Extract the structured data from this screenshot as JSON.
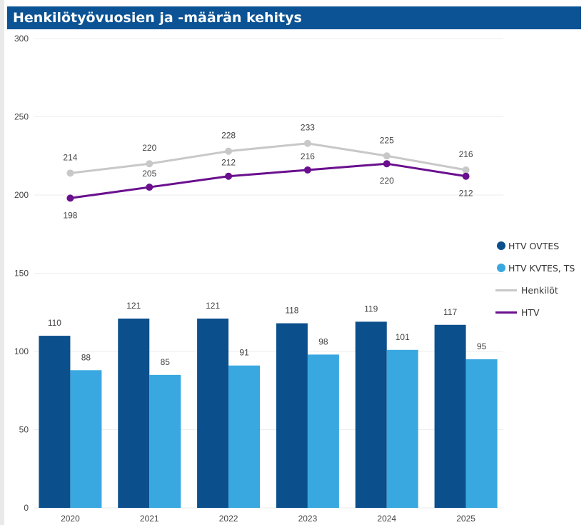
{
  "title": "Henkilötyövuosien ja -määrän kehitys",
  "colors": {
    "title_bg": "#0b5394",
    "htv_ovtes": "#0b4f8c",
    "htv_kvtes": "#3aa8e0",
    "henkilot": "#c8c8c8",
    "htv": "#6a0f8e"
  },
  "legend": [
    {
      "label": "HTV OVTES",
      "marker": "dot",
      "color": "#0b4f8c"
    },
    {
      "label": "HTV KVTES, TS",
      "marker": "dot",
      "color": "#3aa8e0"
    },
    {
      "label": "Henkilöt",
      "marker": "line",
      "color": "#c8c8c8"
    },
    {
      "label": "HTV",
      "marker": "line",
      "color": "#6a0f8e"
    }
  ],
  "chart_data": {
    "type": "bar",
    "title": "Henkilötyövuosien ja -määrän kehitys",
    "categories": [
      "2020",
      "2021",
      "2022",
      "2023",
      "2024",
      "2025"
    ],
    "ylim": [
      0,
      300
    ],
    "yticks": [
      0,
      50,
      100,
      150,
      200,
      250,
      300
    ],
    "grid": true,
    "legend_position": "right",
    "series": [
      {
        "name": "HTV OVTES",
        "type": "bar",
        "values": [
          110,
          121,
          121,
          118,
          119,
          117
        ]
      },
      {
        "name": "HTV KVTES, TS",
        "type": "bar",
        "values": [
          88,
          85,
          91,
          98,
          101,
          95
        ]
      },
      {
        "name": "Henkilöt",
        "type": "line",
        "values": [
          214,
          220,
          228,
          233,
          225,
          216
        ]
      },
      {
        "name": "HTV",
        "type": "line",
        "values": [
          198,
          205,
          212,
          216,
          220,
          212
        ]
      }
    ]
  }
}
